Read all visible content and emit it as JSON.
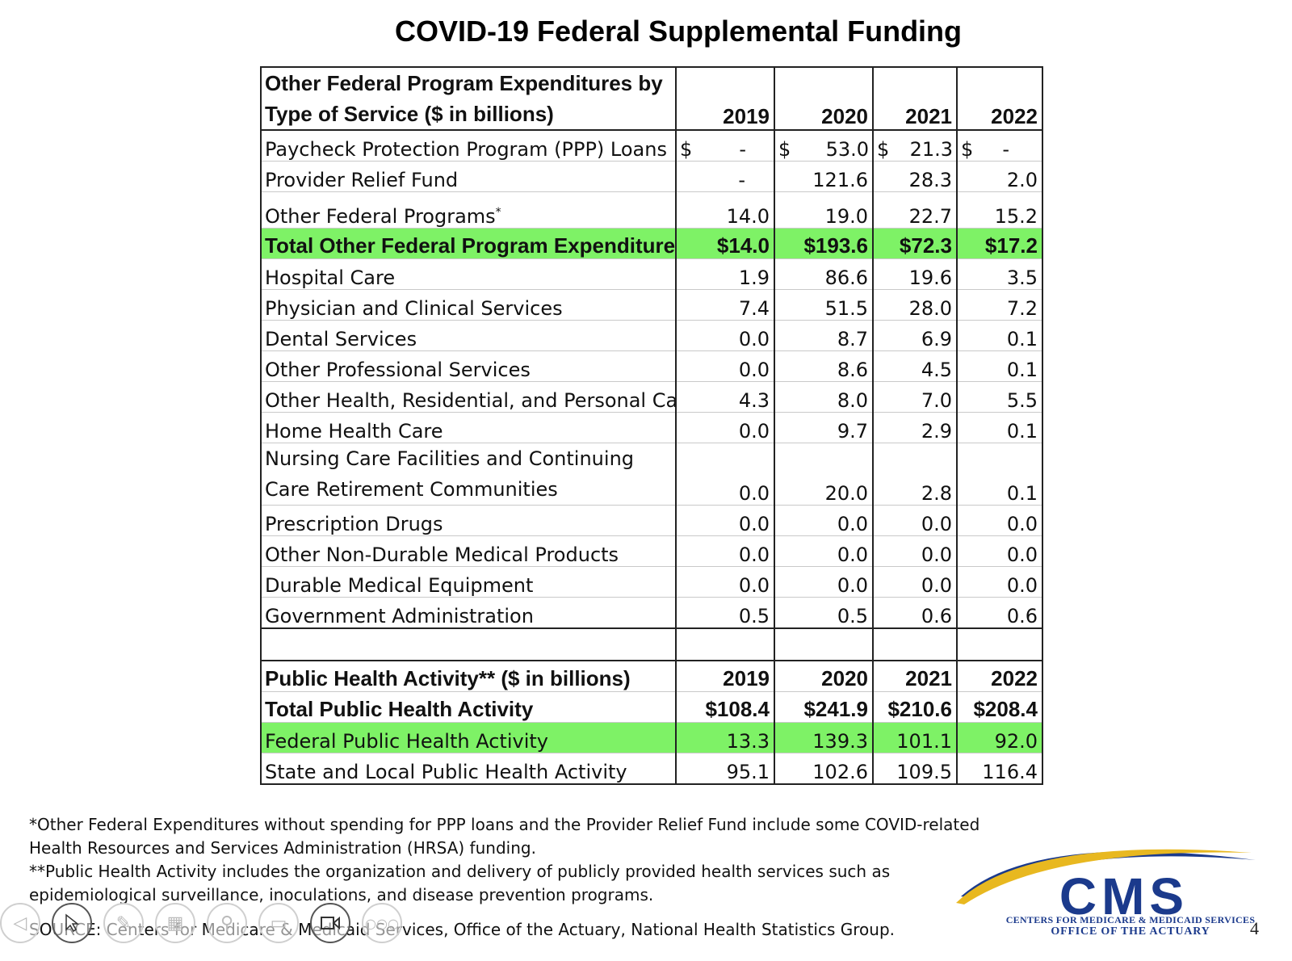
{
  "title": "COVID-19 Federal Supplemental Funding",
  "table": {
    "header1": {
      "label_line1": "Other Federal Program Expenditures by",
      "label_line2": "Type of Service ($ in billions)",
      "years": [
        "2019",
        "2020",
        "2021",
        "2022"
      ]
    },
    "ppp": {
      "label": "Paycheck Protection Program (PPP) Loans",
      "dollar": "$",
      "values": [
        "-",
        "53.0",
        "21.3",
        "-"
      ]
    },
    "provider_relief": {
      "label": "Provider Relief Fund",
      "values": [
        "-",
        "121.6",
        "28.3",
        "2.0"
      ]
    },
    "other_programs": {
      "label": "Other Federal Programs",
      "marker": "*",
      "values": [
        "14.0",
        "19.0",
        "22.7",
        "15.2"
      ]
    },
    "total_other": {
      "label": "Total Other Federal Program Expenditures",
      "values": [
        "$14.0",
        "$193.6",
        "$72.3",
        "$17.2"
      ]
    },
    "services": [
      {
        "label": "Hospital Care",
        "values": [
          "1.9",
          "86.6",
          "19.6",
          "3.5"
        ]
      },
      {
        "label": "Physician and Clinical Services",
        "values": [
          "7.4",
          "51.5",
          "28.0",
          "7.2"
        ]
      },
      {
        "label": "Dental Services",
        "values": [
          "0.0",
          "8.7",
          "6.9",
          "0.1"
        ]
      },
      {
        "label": "Other Professional Services",
        "values": [
          "0.0",
          "8.6",
          "4.5",
          "0.1"
        ]
      },
      {
        "label": "Other Health, Residential, and Personal Ca",
        "values": [
          "4.3",
          "8.0",
          "7.0",
          "5.5"
        ]
      },
      {
        "label": "Home Health Care",
        "values": [
          "0.0",
          "9.7",
          "2.9",
          "0.1"
        ]
      }
    ],
    "nursing": {
      "label_line1": "Nursing Care Facilities and Continuing",
      "label_line2": "Care Retirement Communities",
      "values": [
        "0.0",
        "20.0",
        "2.8",
        "0.1"
      ]
    },
    "services2": [
      {
        "label": "Prescription Drugs",
        "values": [
          "0.0",
          "0.0",
          "0.0",
          "0.0"
        ]
      },
      {
        "label": "Other Non-Durable Medical Products",
        "values": [
          "0.0",
          "0.0",
          "0.0",
          "0.0"
        ]
      },
      {
        "label": "Durable Medical Equipment",
        "values": [
          "0.0",
          "0.0",
          "0.0",
          "0.0"
        ]
      },
      {
        "label": "Government Administration",
        "values": [
          "0.5",
          "0.5",
          "0.6",
          "0.6"
        ]
      }
    ],
    "header2": {
      "label": "Public Health Activity** ($ in billions)",
      "years": [
        "2019",
        "2020",
        "2021",
        "2022"
      ]
    },
    "total_public": {
      "label": "Total Public Health Activity",
      "values": [
        "$108.4",
        "$241.9",
        "$210.6",
        "$208.4"
      ]
    },
    "federal_public": {
      "label": "Federal Public Health Activity",
      "values": [
        "13.3",
        "139.3",
        "101.1",
        "92.0"
      ]
    },
    "state_public": {
      "label": "State and Local Public Health Activity",
      "values": [
        "95.1",
        "102.6",
        "109.5",
        "116.4"
      ]
    }
  },
  "footnotes": {
    "note1_line1": "*Other Federal Expenditures without spending for PPP loans and the Provider Relief Fund include some COVID-related",
    "note1_line2": "Health Resources and Services Administration (HRSA) funding.",
    "note2_line1": "**Public Health Activity includes the organization and delivery of publicly provided health services such as",
    "note2_line2": "epidemiological surveillance, inoculations, and disease prevention programs.",
    "source": "SOURCE: Centers for Medicare & Medicaid Services, Office of the Actuary, National Health Statistics Group."
  },
  "logo": {
    "word": "CMS",
    "line1": "CENTERS FOR MEDICARE & MEDICAID SERVICES",
    "line2": "OFFICE OF THE ACTUARY",
    "colors": {
      "navy": "#1b3a8c",
      "gold": "#e8b820"
    }
  },
  "page_number": "4",
  "colors": {
    "highlight": "#7ef266"
  }
}
